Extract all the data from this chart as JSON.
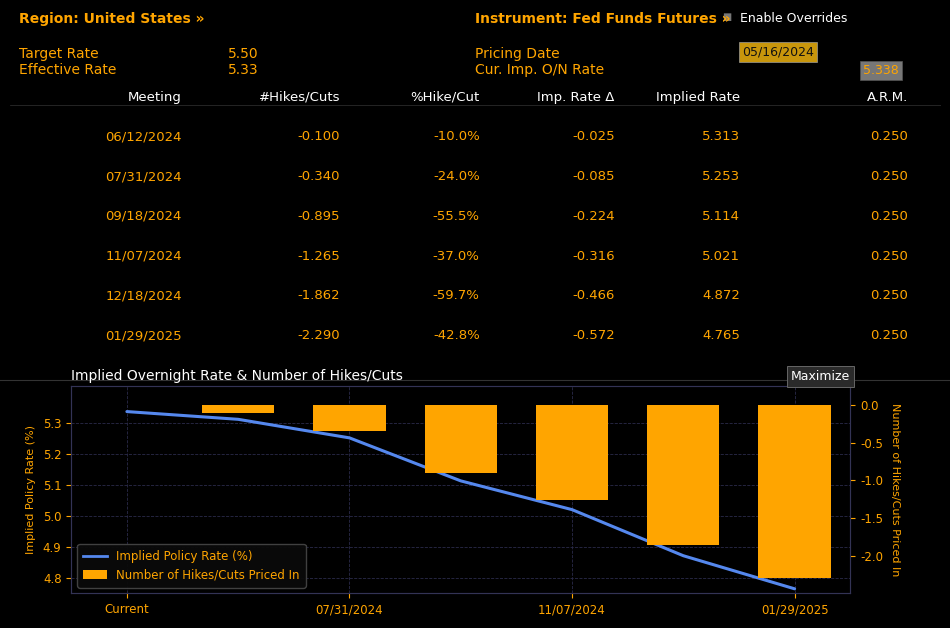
{
  "bg_color": "#000000",
  "text_color_orange": "#FFA500",
  "text_color_white": "#FFFFFF",
  "text_color_gray": "#AAAAAA",
  "region_text": "Region: United States »",
  "instrument_text": "Instrument: Fed Funds Futures »",
  "target_rate_label": "Target Rate",
  "target_rate_value": "5.50",
  "effective_rate_label": "Effective Rate",
  "effective_rate_value": "5.33",
  "pricing_date_label": "Pricing Date",
  "pricing_date_value": "05/16/2024",
  "cur_imp_label": "Cur. Imp. O/N Rate",
  "cur_imp_value": "5.338",
  "enable_overrides": "Enable Overrides",
  "table_headers": [
    "Meeting",
    "#Hikes/Cuts",
    "%Hike/Cut",
    "Imp. Rate Δ",
    "Implied Rate",
    "A.R.M."
  ],
  "table_data": [
    [
      "06/12/2024",
      "-0.100",
      "-10.0%",
      "-0.025",
      "5.313",
      "0.250"
    ],
    [
      "07/31/2024",
      "-0.340",
      "-24.0%",
      "-0.085",
      "5.253",
      "0.250"
    ],
    [
      "09/18/2024",
      "-0.895",
      "-55.5%",
      "-0.224",
      "5.114",
      "0.250"
    ],
    [
      "11/07/2024",
      "-1.265",
      "-37.0%",
      "-0.316",
      "5.021",
      "0.250"
    ],
    [
      "12/18/2024",
      "-1.862",
      "-59.7%",
      "-0.466",
      "4.872",
      "0.250"
    ],
    [
      "01/29/2025",
      "-2.290",
      "-42.8%",
      "-0.572",
      "4.765",
      "0.250"
    ]
  ],
  "chart_title": "Implied Overnight Rate & Number of Hikes/Cuts",
  "maximize_text": "Maximize",
  "ylabel_left": "Implied Policy Rate (%)",
  "ylabel_right": "Number of Hikes/Cuts Priced In",
  "x_labels": [
    "Current",
    "06/12/2024",
    "07/31/2024",
    "09/18/2024",
    "11/07/2024",
    "12/18/2024",
    "01/29/2025"
  ],
  "x_tick_positions": [
    0,
    2,
    4,
    6
  ],
  "x_tick_labels": [
    "Current",
    "07/31/2024",
    "11/07/2024",
    "01/29/2025"
  ],
  "x_positions": [
    0,
    1,
    2,
    3,
    4,
    5,
    6
  ],
  "line_rates": [
    5.338,
    5.313,
    5.253,
    5.114,
    5.021,
    4.872,
    4.765
  ],
  "bar_hikes": [
    0.0,
    -0.1,
    -0.34,
    -0.895,
    -1.265,
    -1.862,
    -2.29
  ],
  "ylim_left": [
    4.75,
    5.42
  ],
  "ylim_right": [
    -2.5,
    0.25
  ],
  "line_color": "#5588EE",
  "bar_color": "#FFA500",
  "grid_color": "#2a2a4a",
  "spine_color": "#333355"
}
